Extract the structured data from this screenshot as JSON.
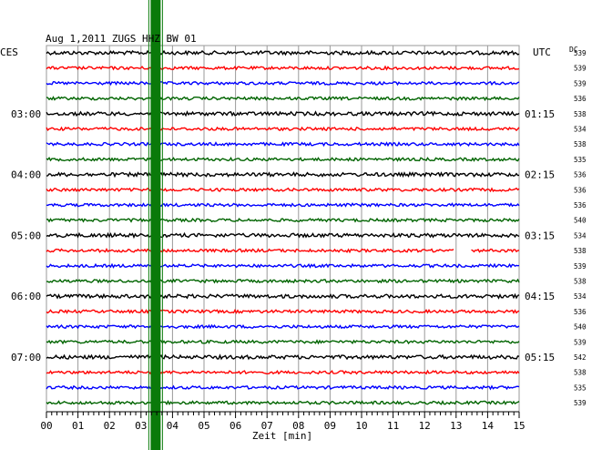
{
  "header": {
    "title": "Aug 1,2011   ZUGS HHZ BW 01",
    "left_zone": "CES",
    "right_zone": "UTC",
    "dc_label": "DC"
  },
  "colors": {
    "black": "#000000",
    "red": "#ff0000",
    "blue": "#0000ff",
    "green": "#006400",
    "grid": "#9a9a9a",
    "event": "#0a7a0a"
  },
  "chart_data": {
    "type": "line",
    "xlabel": "Zeit [min]",
    "xlim": [
      0,
      15
    ],
    "x_ticks": [
      "00",
      "01",
      "02",
      "03",
      "04",
      "05",
      "06",
      "07",
      "08",
      "09",
      "10",
      "11",
      "12",
      "13",
      "14",
      "15"
    ],
    "trace_color_cycle": [
      "black",
      "red",
      "blue",
      "green"
    ],
    "left_time_labels": [
      {
        "trace": 4,
        "label": "03:00"
      },
      {
        "trace": 8,
        "label": "04:00"
      },
      {
        "trace": 12,
        "label": "05:00"
      },
      {
        "trace": 16,
        "label": "06:00"
      },
      {
        "trace": 20,
        "label": "07:00"
      }
    ],
    "right_time_labels": [
      {
        "trace": 4,
        "label": "01:15"
      },
      {
        "trace": 8,
        "label": "02:15"
      },
      {
        "trace": 12,
        "label": "03:15"
      },
      {
        "trace": 16,
        "label": "04:15"
      },
      {
        "trace": 20,
        "label": "05:15"
      }
    ],
    "dc_values": [
      "539",
      "539",
      "539",
      "536",
      "538",
      "534",
      "538",
      "535",
      "536",
      "536",
      "536",
      "540",
      "534",
      "538",
      "539",
      "538",
      "534",
      "536",
      "540",
      "539",
      "542",
      "538",
      "535",
      "539"
    ],
    "event_minute": 3.45,
    "gap": {
      "trace": 13,
      "from_minute": 12.95,
      "to_minute": 13.45
    }
  }
}
